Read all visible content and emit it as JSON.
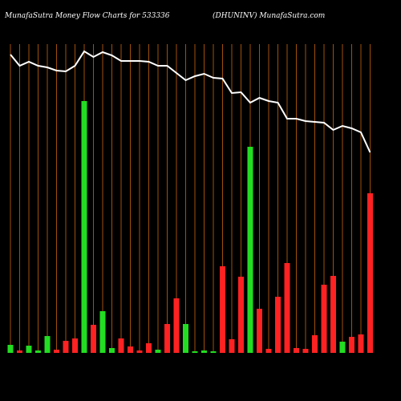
{
  "chart_data": {
    "type": "bar",
    "title": "MunafaSutra  Money Flow  Charts for 533336",
    "subtitle": "(DHUNINV) MunafaSutra.com",
    "categories": [
      null,
      null,
      null,
      null,
      null,
      null,
      null,
      null,
      null,
      null,
      null,
      null,
      null,
      null,
      null,
      null,
      null,
      null,
      null,
      null,
      null,
      null,
      null,
      null,
      null,
      null,
      null,
      null,
      null,
      null,
      null,
      null,
      null,
      null,
      null,
      null,
      null,
      null,
      null,
      null
    ],
    "series": [
      {
        "type": "bar",
        "colors": [
          "#22dd22",
          "#ff2222",
          "#22dd22",
          "#22dd22",
          "#22dd22",
          "#ff2222",
          "#ff2222",
          "#ff2222",
          "#22dd22",
          "#ff2222",
          "#22dd22",
          "#22dd22",
          "#ff2222",
          "#ff2222",
          "#ff2222",
          "#ff2222",
          "#22dd22",
          "#ff2222",
          "#ff2222",
          "#22dd22",
          "#22dd22",
          "#22dd22",
          "#22dd22",
          "#ff2222",
          "#ff2222",
          "#ff2222",
          "#22dd22",
          "#ff2222",
          "#ff2222",
          "#ff2222",
          "#ff2222",
          "#ff2222",
          "#ff2222",
          "#ff2222",
          "#ff2222",
          "#ff2222",
          "#22dd22",
          "#ff2222",
          "#ff2222",
          "#ff2222"
        ],
        "values": [
          10,
          3,
          9,
          3,
          21,
          4,
          15,
          18,
          314,
          35,
          52,
          6,
          18,
          8,
          3,
          12,
          4,
          36,
          68,
          36,
          2,
          3,
          2,
          108,
          17,
          95,
          257,
          55,
          5,
          70,
          112,
          6,
          5,
          22,
          85,
          96,
          14,
          20,
          23,
          199
        ]
      },
      {
        "type": "line",
        "color": "#ffffff",
        "values": [
          372,
          358,
          363,
          358,
          356,
          352,
          351,
          358,
          376,
          369,
          375,
          371,
          364,
          364,
          364,
          363,
          358,
          358,
          349,
          340,
          345,
          348,
          343,
          342,
          324,
          325,
          312,
          318,
          314,
          312,
          292,
          292,
          289,
          288,
          287,
          278,
          283,
          280,
          275,
          250
        ]
      }
    ],
    "ylim": [
      0,
      380
    ],
    "grid_color": "#a0500a"
  }
}
